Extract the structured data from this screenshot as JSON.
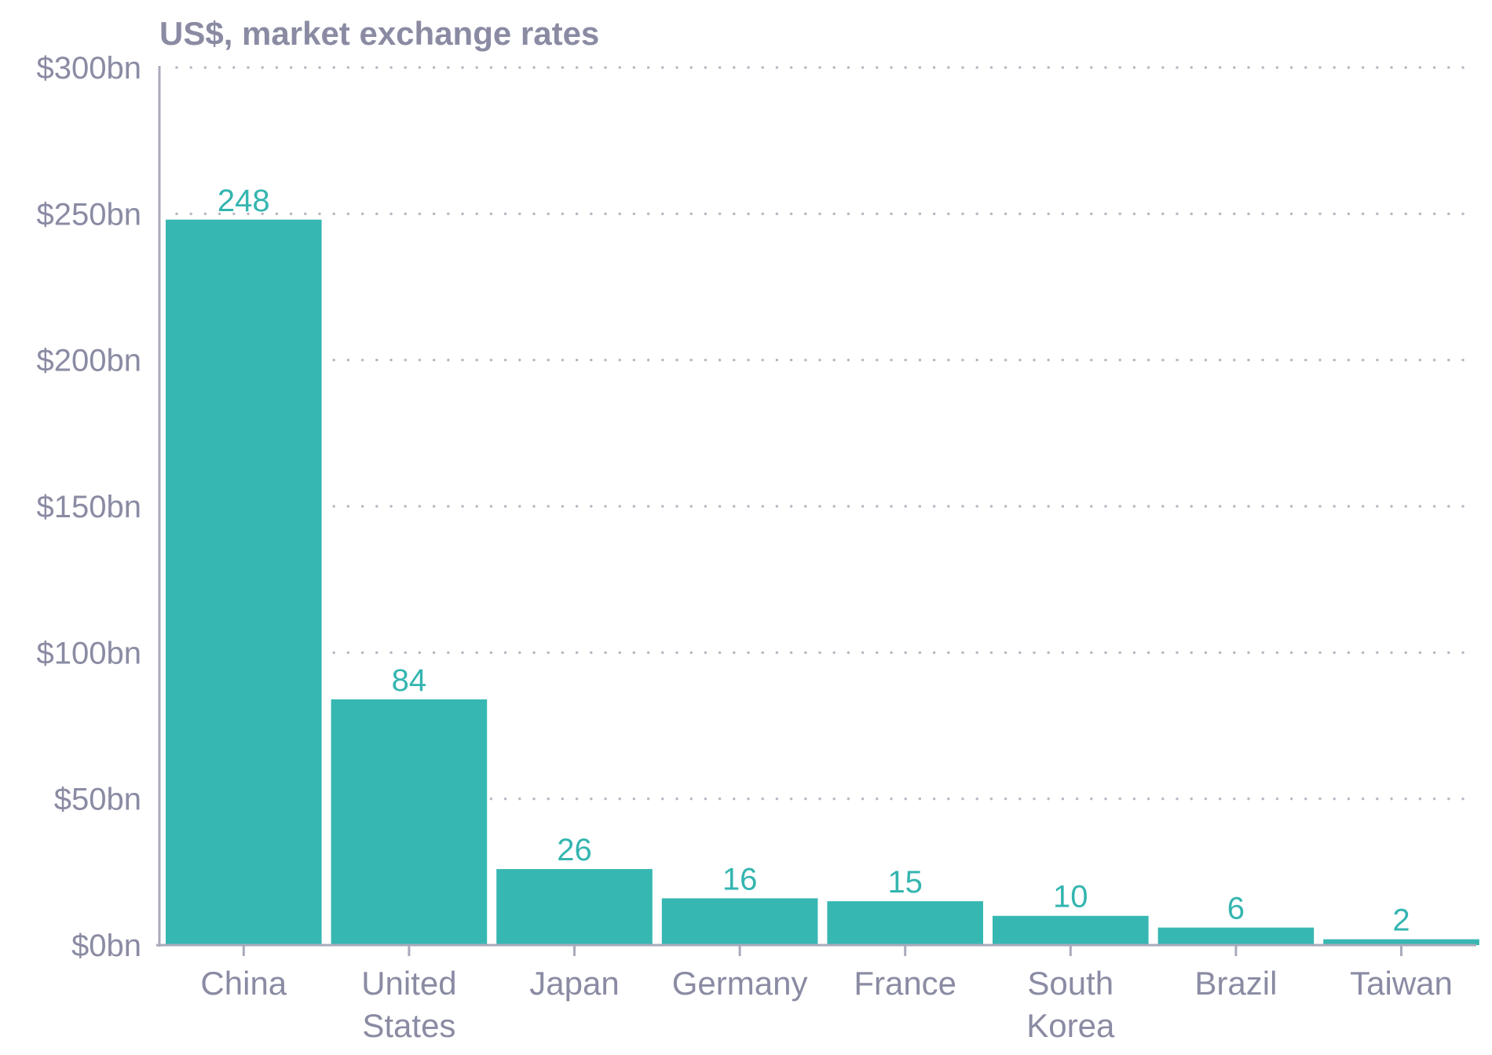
{
  "chart_data": {
    "type": "bar",
    "subtitle": "US$, market exchange rates",
    "categories": [
      [
        "China"
      ],
      [
        "United",
        "States"
      ],
      [
        "Japan"
      ],
      [
        "Germany"
      ],
      [
        "France"
      ],
      [
        "South",
        "Korea"
      ],
      [
        "Brazil"
      ],
      [
        "Taiwan"
      ]
    ],
    "values": [
      248,
      84,
      26,
      16,
      15,
      10,
      6,
      2
    ],
    "data_labels": [
      "248",
      "84",
      "26",
      "16",
      "15",
      "10",
      "6",
      "2"
    ],
    "y_ticks": [
      {
        "value": 0,
        "label": "$0bn"
      },
      {
        "value": 50,
        "label": "$50bn"
      },
      {
        "value": 100,
        "label": "$100bn"
      },
      {
        "value": 150,
        "label": "$150bn"
      },
      {
        "value": 200,
        "label": "$200bn"
      },
      {
        "value": 250,
        "label": "$250bn"
      },
      {
        "value": 300,
        "label": "$300bn"
      }
    ],
    "ylim": [
      0,
      300
    ],
    "grid": true,
    "legend": "none",
    "colors": {
      "bar": "#37b7b2",
      "data_label": "#34b5b0",
      "text": "#8a8ba3",
      "axis": "#a9aabb",
      "grid": "#b8b9c4"
    }
  }
}
